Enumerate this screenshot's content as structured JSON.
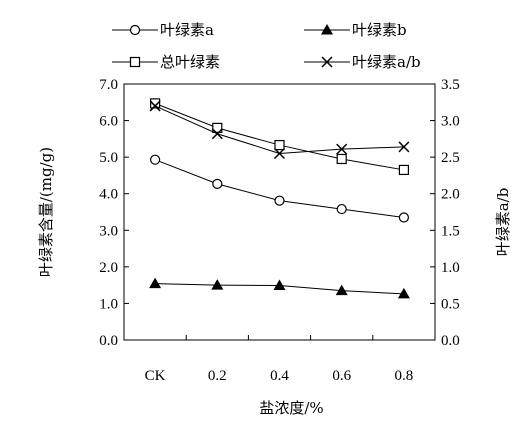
{
  "chart_data": {
    "type": "line",
    "categories": [
      "CK",
      "0.2",
      "0.4",
      "0.6",
      "0.8"
    ],
    "series": [
      {
        "name": "叶绿素a",
        "axis": "left",
        "marker": "circle-open",
        "values": [
          4.93,
          4.27,
          3.81,
          3.58,
          3.35
        ]
      },
      {
        "name": "叶绿素b",
        "axis": "left",
        "marker": "triangle-filled",
        "values": [
          1.54,
          1.5,
          1.49,
          1.35,
          1.26
        ]
      },
      {
        "name": "总叶绿素",
        "axis": "left",
        "marker": "square-open",
        "values": [
          6.47,
          5.8,
          5.33,
          4.95,
          4.65
        ]
      },
      {
        "name": "叶绿素a/b",
        "axis": "right",
        "marker": "x",
        "values": [
          3.2,
          2.82,
          2.55,
          2.61,
          2.64
        ]
      }
    ],
    "xlabel": "盐浓度/%",
    "ylabel": "叶绿素含量/(mg/g)",
    "y2label": "叶绿素a/b",
    "ylim": [
      0,
      7
    ],
    "y2lim": [
      0,
      3.5
    ],
    "yticks": [
      "0.0",
      "1.0",
      "2.0",
      "3.0",
      "4.0",
      "5.0",
      "6.0",
      "7.0"
    ],
    "y2ticks": [
      "0.0",
      "0.5",
      "1.0",
      "1.5",
      "2.0",
      "2.5",
      "3.0",
      "3.5"
    ],
    "grid": false,
    "legend_position": "top"
  }
}
